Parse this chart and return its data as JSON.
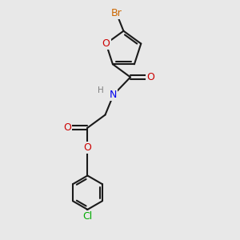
{
  "background_color": "#e8e8e8",
  "bond_color": "#1a1a1a",
  "bond_width": 1.5,
  "atom_colors": {
    "Br": "#cc6600",
    "O": "#cc0000",
    "N": "#0000ee",
    "Cl": "#00aa00",
    "C": "#1a1a1a",
    "H": "#808080"
  },
  "font_size": 9.0,
  "figsize": [
    3.0,
    3.0
  ],
  "dpi": 100
}
